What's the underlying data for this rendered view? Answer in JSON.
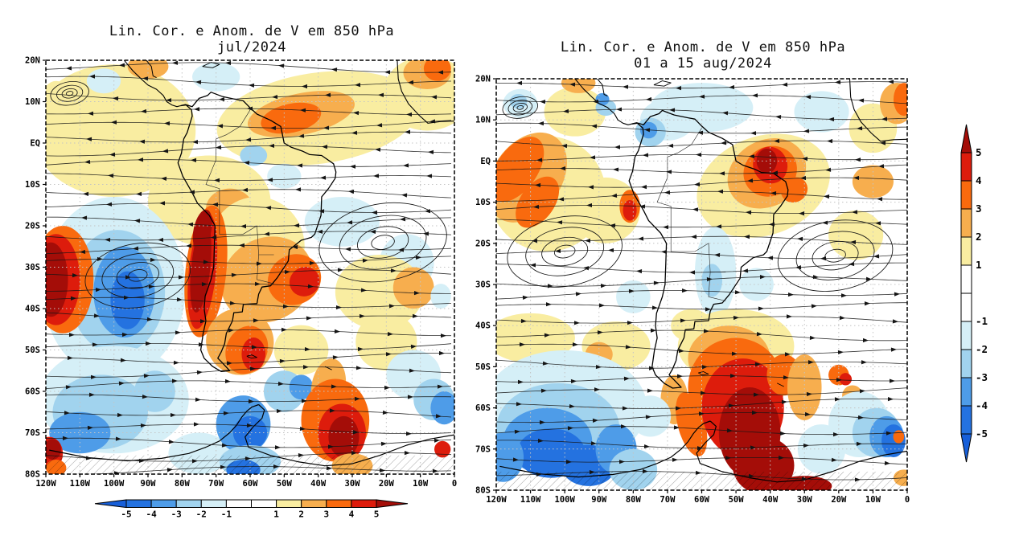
{
  "figure_background": "#ffffff",
  "chart_data": [
    {
      "type": "streamline_anomaly_map",
      "panel": "left",
      "title": "Lin. Cor. e Anom. de V em 850 hPa",
      "subtitle": "jul/2024",
      "lon_range": [
        -120,
        0
      ],
      "lat_range": [
        -80,
        20
      ],
      "x_ticks": [
        "120W",
        "110W",
        "100W",
        "90W",
        "80W",
        "70W",
        "60W",
        "50W",
        "40W",
        "30W",
        "20W",
        "10W",
        "0"
      ],
      "y_ticks": [
        "20N",
        "10N",
        "EQ",
        "10S",
        "20S",
        "30S",
        "40S",
        "50S",
        "60S",
        "70S",
        "80S"
      ],
      "grid": "dotted 10-degree",
      "vortices": [
        {
          "lon": -93,
          "lat": -32,
          "r": 66
        },
        {
          "lon": -21,
          "lat": -24,
          "r": 80
        },
        {
          "lon": -113,
          "lat": 12,
          "r": 24
        }
      ],
      "anomaly_cells": [
        [
          -100,
          3,
          24,
          16,
          0,
          1
        ],
        [
          -72,
          -14,
          18,
          11,
          0,
          1
        ],
        [
          -40,
          6,
          30,
          11,
          -8,
          1
        ],
        [
          -8,
          12,
          13,
          9,
          0,
          1
        ],
        [
          -45,
          7,
          16,
          5,
          -12,
          2
        ],
        [
          -48,
          6,
          9,
          3.5,
          -12,
          3
        ],
        [
          -8,
          17,
          7,
          4,
          0,
          2
        ],
        [
          -5,
          18,
          4,
          3,
          0,
          3
        ],
        [
          -90,
          18.5,
          6,
          3,
          0,
          2
        ],
        [
          -70,
          16,
          7,
          3.5,
          0,
          -1
        ],
        [
          -103,
          15,
          5,
          3,
          0,
          -1
        ],
        [
          -117,
          11,
          4,
          4,
          0,
          1
        ],
        [
          -59,
          -3,
          4,
          2.5,
          0,
          -2
        ],
        [
          -50,
          -8,
          5,
          3,
          0,
          -1
        ],
        [
          -66,
          -16,
          7,
          5,
          0,
          2
        ],
        [
          -58,
          -25,
          14,
          12,
          0,
          1
        ],
        [
          -33,
          -19,
          11,
          6,
          0,
          -1
        ],
        [
          -14,
          -29,
          8,
          7,
          0,
          -1
        ],
        [
          -24,
          -31,
          6,
          4,
          0,
          -1
        ],
        [
          -100,
          -35,
          21,
          22,
          0,
          -1
        ],
        [
          -99,
          -36,
          14,
          15,
          0,
          -2
        ],
        [
          -97,
          -36,
          9,
          11,
          0,
          -3
        ],
        [
          -96,
          -38,
          5,
          7,
          0,
          -4
        ],
        [
          -115,
          -33,
          9,
          13,
          0,
          3
        ],
        [
          -117,
          -33,
          7,
          11,
          0,
          4
        ],
        [
          -118.5,
          -33,
          5,
          9,
          0,
          5
        ],
        [
          -55,
          -33,
          14,
          10,
          -30,
          2
        ],
        [
          -47,
          -33,
          8,
          6,
          -30,
          3
        ],
        [
          -44,
          -33.5,
          4.5,
          3.5,
          -30,
          4
        ],
        [
          -22,
          -36,
          13,
          9,
          0,
          1
        ],
        [
          -12,
          -35,
          6,
          5,
          0,
          2
        ],
        [
          -4,
          -37,
          3,
          3,
          0,
          -1
        ],
        [
          -73,
          -31,
          6,
          16,
          6,
          3
        ],
        [
          -74,
          -31,
          4,
          14,
          6,
          4
        ],
        [
          -74.5,
          -30,
          2.8,
          11,
          6,
          5
        ],
        [
          -74,
          -21,
          2.6,
          5,
          12,
          5
        ],
        [
          -63,
          -48,
          10,
          8,
          25,
          2
        ],
        [
          -61,
          -50,
          6,
          6,
          25,
          3
        ],
        [
          -59,
          -51,
          3.5,
          4,
          0,
          4
        ],
        [
          -45,
          -50,
          8,
          6,
          0,
          1
        ],
        [
          -20,
          -48,
          9,
          7,
          0,
          1
        ],
        [
          -12,
          -56,
          8,
          6,
          0,
          -1
        ],
        [
          -100,
          -62,
          22,
          13,
          0,
          -1
        ],
        [
          -104,
          -65,
          14,
          9,
          0,
          -2
        ],
        [
          -110,
          -70,
          9,
          5,
          0,
          -3
        ],
        [
          -88,
          -60,
          6,
          5,
          0,
          -2
        ],
        [
          -75,
          -75,
          9,
          5,
          0,
          -1
        ],
        [
          -62,
          -68,
          8,
          7,
          0,
          -3
        ],
        [
          -60,
          -70,
          5,
          4,
          0,
          -4
        ],
        [
          -50,
          -60,
          6,
          5,
          0,
          -2
        ],
        [
          -45,
          -59,
          3.5,
          3,
          0,
          -3
        ],
        [
          -37,
          -59,
          5,
          7,
          10,
          2
        ],
        [
          -35,
          -67,
          10,
          10,
          0,
          3
        ],
        [
          -33,
          -70,
          7,
          7,
          0,
          4
        ],
        [
          -32.5,
          -71,
          4.5,
          5,
          0,
          5
        ],
        [
          -6,
          -62,
          6,
          5,
          0,
          -2
        ],
        [
          -3,
          -64,
          4,
          4,
          0,
          -3
        ],
        [
          -3.5,
          -74,
          2.4,
          2,
          0,
          4
        ],
        [
          -119,
          -75,
          4,
          4,
          0,
          4
        ],
        [
          -118,
          -74,
          2.5,
          2.5,
          0,
          5
        ],
        [
          -117,
          -78.5,
          3,
          2,
          0,
          3
        ],
        [
          -60,
          -77,
          9,
          4,
          0,
          -2
        ],
        [
          -62,
          -79,
          5,
          2.5,
          0,
          -4
        ],
        [
          -30,
          -78,
          6,
          3,
          0,
          2
        ]
      ]
    },
    {
      "type": "streamline_anomaly_map",
      "panel": "right",
      "title": "Lin. Cor. e Anom. de V em 850 hPa",
      "subtitle": "01 a 15 aug/2024",
      "lon_range": [
        -120,
        0
      ],
      "lat_range": [
        -80,
        20
      ],
      "x_ticks": [
        "120W",
        "110W",
        "100W",
        "90W",
        "80W",
        "70W",
        "60W",
        "50W",
        "40W",
        "30W",
        "20W",
        "10W",
        "0"
      ],
      "y_ticks": [
        "20N",
        "10N",
        "EQ",
        "10S",
        "20S",
        "30S",
        "40S",
        "50S",
        "60S",
        "70S",
        "80S"
      ],
      "grid": "dotted 10-degree",
      "vortices": [
        {
          "lon": -100,
          "lat": -22,
          "r": 72
        },
        {
          "lon": -21,
          "lat": -23,
          "r": 72
        },
        {
          "lon": -113,
          "lat": 13,
          "r": 22
        }
      ],
      "anomaly_cells": [
        [
          -113,
          14,
          5,
          3.5,
          0,
          -1
        ],
        [
          -113.5,
          14.5,
          2.5,
          1.8,
          0,
          -2
        ],
        [
          -97,
          12,
          9,
          6,
          0,
          1
        ],
        [
          -96,
          19,
          5,
          2.5,
          0,
          2
        ],
        [
          -60,
          13,
          15,
          6,
          0,
          -1
        ],
        [
          -88,
          13,
          3,
          2,
          0,
          -2
        ],
        [
          -89,
          15,
          2,
          1.5,
          0,
          -3
        ],
        [
          -70,
          10,
          8,
          5,
          0,
          -1
        ],
        [
          -75,
          7,
          4.5,
          3.5,
          0,
          -2
        ],
        [
          -75.5,
          7.5,
          2.5,
          2,
          0,
          -3
        ],
        [
          -25,
          12,
          8,
          5,
          0,
          -1
        ],
        [
          -10,
          8,
          7,
          6,
          0,
          1
        ],
        [
          -3,
          14,
          5,
          5,
          0,
          2
        ],
        [
          -1,
          15,
          3,
          4,
          0,
          3
        ],
        [
          -105,
          -8,
          17,
          14,
          0,
          1
        ],
        [
          -111,
          -4,
          10,
          12,
          35,
          2
        ],
        [
          -114,
          -2,
          6,
          9,
          35,
          3
        ],
        [
          -108,
          -10,
          5,
          7,
          35,
          3
        ],
        [
          -88,
          -12,
          10,
          8,
          0,
          1
        ],
        [
          -81,
          -11,
          3,
          4,
          0,
          3
        ],
        [
          -81,
          -12,
          2,
          2.5,
          0,
          4
        ],
        [
          -42,
          -6,
          20,
          12,
          -20,
          1
        ],
        [
          -41,
          -3,
          12,
          8,
          -30,
          2
        ],
        [
          -40,
          -2.5,
          8,
          6,
          -30,
          3
        ],
        [
          -40,
          -1,
          5,
          4.5,
          -20,
          4
        ],
        [
          -41,
          0,
          3,
          3,
          0,
          5
        ],
        [
          -33,
          -7,
          4,
          3,
          -30,
          3
        ],
        [
          -10,
          -5,
          6,
          4,
          0,
          2
        ],
        [
          -15,
          -18,
          8,
          6,
          0,
          1
        ],
        [
          -56,
          -27,
          6,
          11,
          0,
          -1
        ],
        [
          -57,
          -29,
          3,
          4,
          0,
          -2
        ],
        [
          -44,
          -30,
          5,
          4,
          0,
          -1
        ],
        [
          -80,
          -33,
          5,
          4,
          0,
          -1
        ],
        [
          -110,
          -43,
          13,
          6,
          0,
          1
        ],
        [
          -85,
          -45,
          10,
          6,
          0,
          1
        ],
        [
          -90,
          -47,
          4,
          3,
          0,
          2
        ],
        [
          -63,
          -40,
          6,
          4,
          0,
          1
        ],
        [
          -60,
          -43,
          4,
          3,
          0,
          2
        ],
        [
          -50,
          -45,
          17,
          9,
          0,
          1
        ],
        [
          -52,
          -48,
          12,
          8,
          0,
          2
        ],
        [
          -68,
          -58,
          4,
          6,
          0,
          2
        ],
        [
          -50,
          -55,
          14,
          12,
          0,
          3
        ],
        [
          -63,
          -64,
          4,
          8,
          -15,
          3
        ],
        [
          -48,
          -60,
          12,
          12,
          0,
          4
        ],
        [
          -46,
          -66,
          9,
          11,
          0,
          5
        ],
        [
          -42,
          -74,
          9,
          7,
          0,
          5
        ],
        [
          -36,
          -52,
          5,
          5,
          0,
          3
        ],
        [
          -30,
          -55,
          5,
          8,
          0,
          2
        ],
        [
          -20,
          -52,
          3,
          2.5,
          0,
          3
        ],
        [
          -18,
          -53,
          1.8,
          1.5,
          0,
          4
        ],
        [
          -16,
          -57,
          3,
          2.5,
          0,
          2
        ],
        [
          -100,
          -60,
          24,
          14,
          0,
          -1
        ],
        [
          -102,
          -65,
          18,
          11,
          0,
          -2
        ],
        [
          -105,
          -68,
          13,
          8,
          0,
          -3
        ],
        [
          -104,
          -71,
          10,
          6,
          0,
          -4
        ],
        [
          -93,
          -74,
          8,
          5,
          0,
          -4
        ],
        [
          -85,
          -70,
          6,
          6,
          0,
          -3
        ],
        [
          -80,
          -75,
          7,
          5,
          0,
          -2
        ],
        [
          -75,
          -62,
          6,
          5,
          0,
          -1
        ],
        [
          -118,
          -72,
          6,
          6,
          0,
          -3
        ],
        [
          -25,
          -70,
          7,
          6,
          0,
          -1
        ],
        [
          -14,
          -64,
          9,
          8,
          0,
          -1
        ],
        [
          -9,
          -66,
          7,
          6,
          0,
          -2
        ],
        [
          -6,
          -67,
          5,
          5,
          0,
          -3
        ],
        [
          -4,
          -68,
          3.5,
          4,
          0,
          -4
        ],
        [
          -2.5,
          -67,
          1.6,
          1.6,
          0,
          3
        ],
        [
          -1,
          -77,
          3,
          2,
          0,
          2
        ],
        [
          -30,
          -79,
          8,
          2.5,
          0,
          5
        ]
      ]
    }
  ],
  "colorbar": {
    "tick_labels": [
      "-5",
      "-4",
      "-3",
      "-2",
      "-1",
      "1",
      "2",
      "3",
      "4",
      "5"
    ],
    "levels": [
      -5,
      -4,
      -3,
      -2,
      -1,
      1,
      2,
      3,
      4,
      5
    ],
    "cell_colors": [
      "#175fd9",
      "#2472e0",
      "#4e9ce8",
      "#a1d3ee",
      "#d5eff7",
      "#ffffff",
      "#ffffff",
      "#f9eda1",
      "#f7ae4e",
      "#f96a0e",
      "#dd1c0c",
      "#a40d08"
    ],
    "placements": [
      "horizontal-below-left-panel",
      "vertical-right-edge"
    ]
  }
}
